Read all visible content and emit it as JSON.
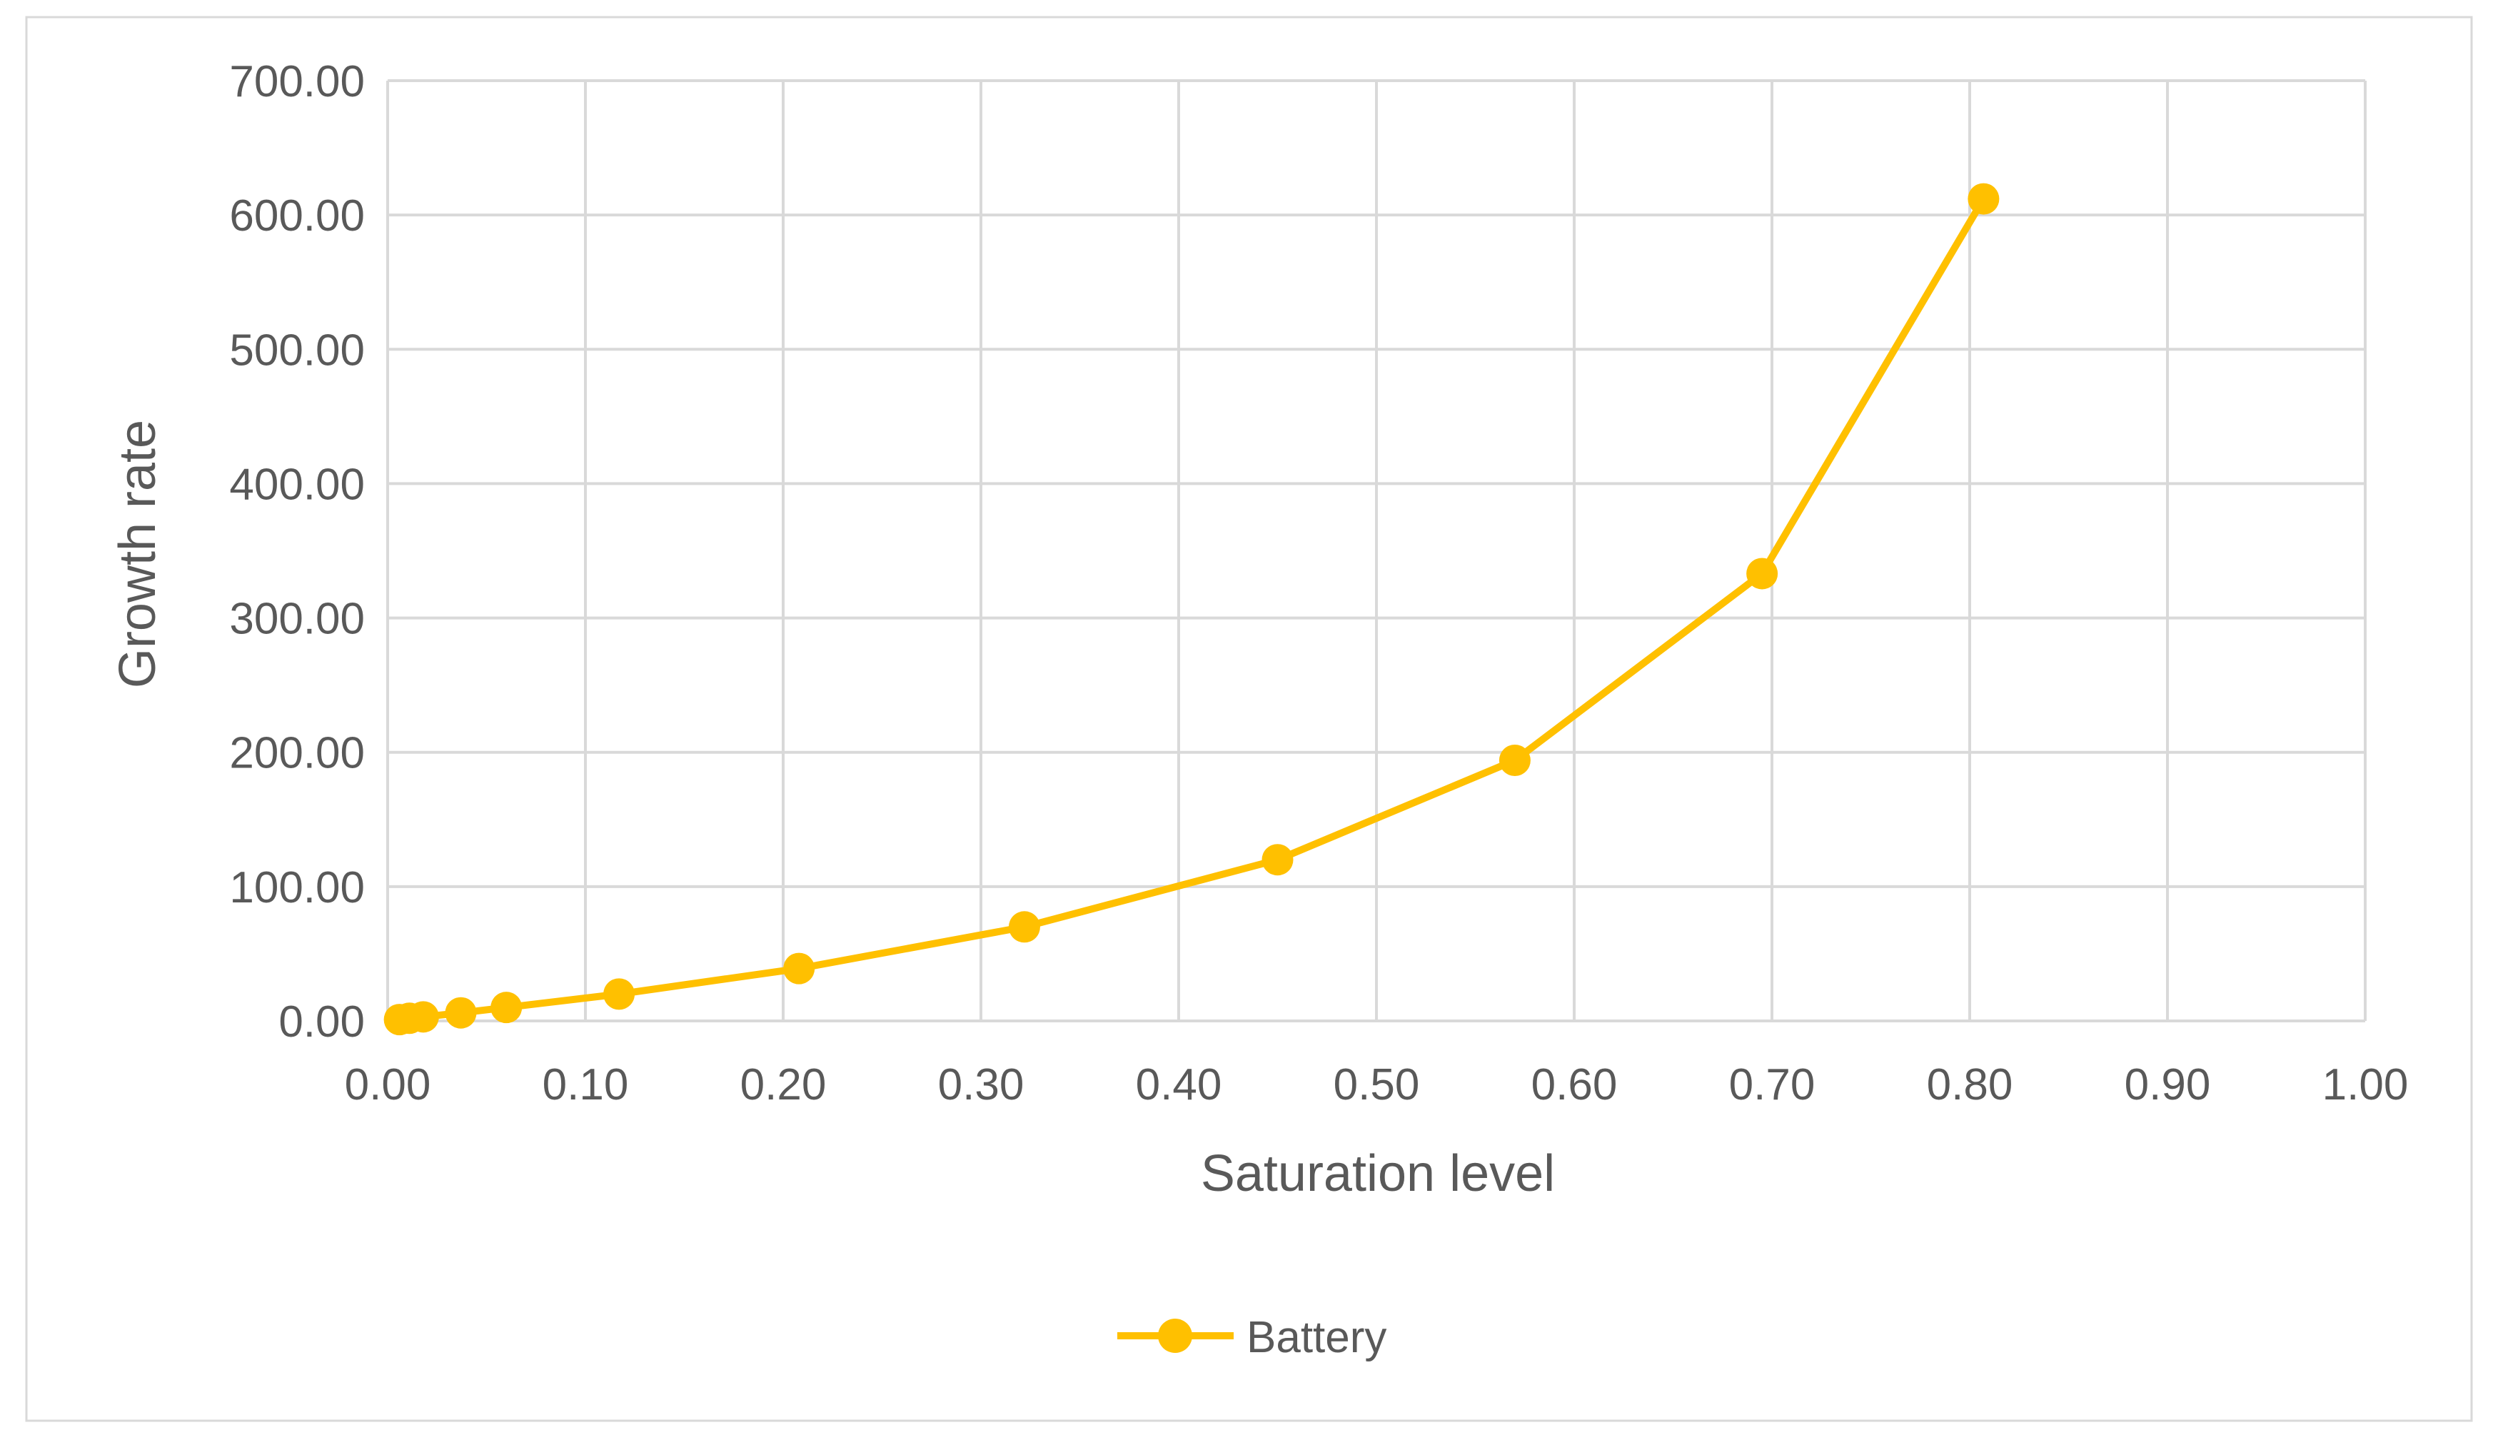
{
  "chart_data": {
    "type": "scatter",
    "title": "",
    "xlabel": "Saturation level",
    "ylabel": "Growth rate",
    "xlim": [
      0,
      1.0
    ],
    "ylim": [
      0,
      700
    ],
    "x_ticks": [
      0,
      0.1,
      0.2,
      0.3,
      0.4,
      0.5,
      0.6,
      0.7,
      0.8,
      0.9,
      1.0
    ],
    "y_ticks": [
      0,
      100,
      200,
      300,
      400,
      500,
      600,
      700
    ],
    "x_tick_labels": [
      "0.00",
      "0.10",
      "0.20",
      "0.30",
      "0.40",
      "0.50",
      "0.60",
      "0.70",
      "0.80",
      "0.90",
      "1.00"
    ],
    "y_tick_labels": [
      "0.00",
      "100.00",
      "200.00",
      "300.00",
      "400.00",
      "500.00",
      "600.00",
      "700.00"
    ],
    "grid": true,
    "legend_position": "bottom",
    "series": [
      {
        "name": "Battery",
        "color": "#FFC000",
        "marker": "circle",
        "line": true,
        "points": [
          {
            "x": 0.006,
            "y": 1
          },
          {
            "x": 0.011,
            "y": 2
          },
          {
            "x": 0.018,
            "y": 3
          },
          {
            "x": 0.037,
            "y": 6
          },
          {
            "x": 0.06,
            "y": 10
          },
          {
            "x": 0.117,
            "y": 20
          },
          {
            "x": 0.208,
            "y": 39
          },
          {
            "x": 0.322,
            "y": 70
          },
          {
            "x": 0.45,
            "y": 120
          },
          {
            "x": 0.57,
            "y": 194
          },
          {
            "x": 0.695,
            "y": 333
          },
          {
            "x": 0.807,
            "y": 612
          }
        ]
      }
    ]
  }
}
